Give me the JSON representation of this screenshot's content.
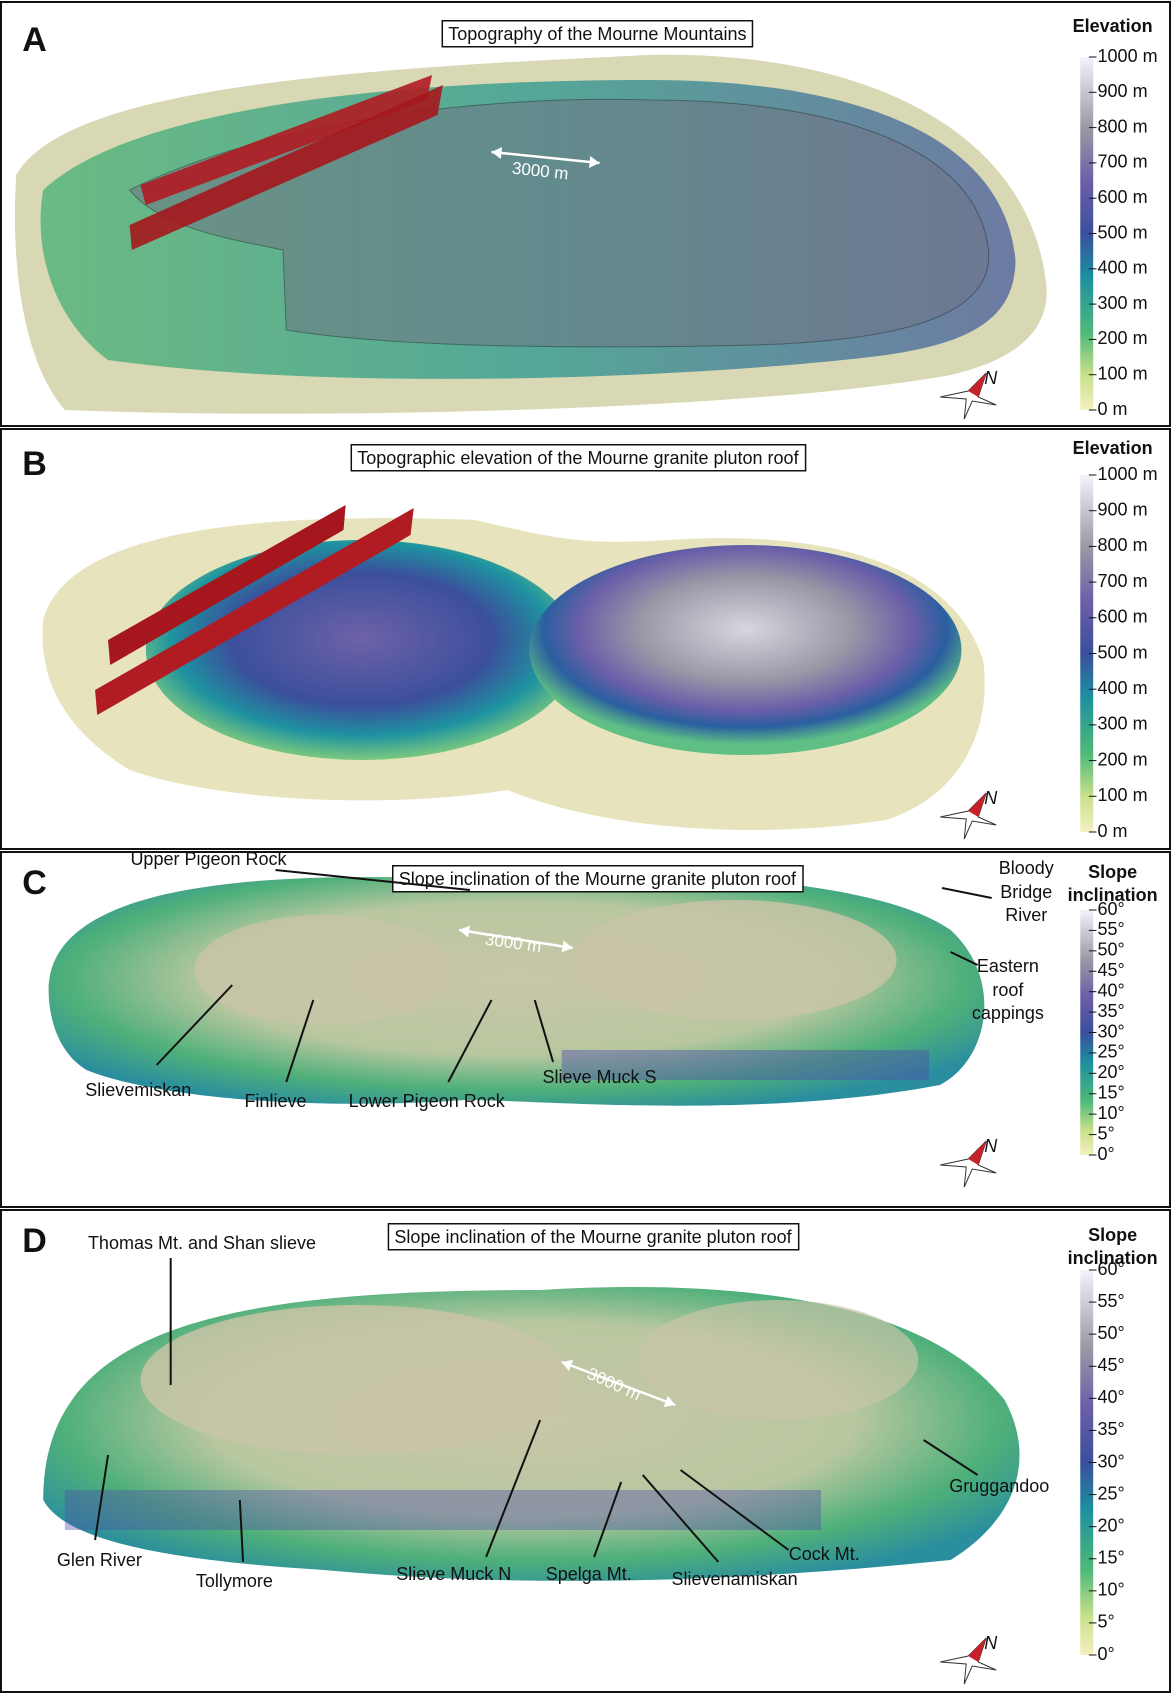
{
  "panels": [
    {
      "letter": "A",
      "title": "Topography of the Mourne Mountains",
      "legend": {
        "title": [
          "Elevation"
        ],
        "ticks": [
          "1000 m",
          "900 m",
          "800 m",
          "700 m",
          "600 m",
          "500 m",
          "400 m",
          "300 m",
          "200 m",
          "100 m",
          "0 m"
        ]
      },
      "scale_bar": "3000 m",
      "north": "N",
      "annotations": []
    },
    {
      "letter": "B",
      "title": "Topographic elevation of the Mourne granite pluton roof",
      "legend": {
        "title": [
          "Elevation"
        ],
        "ticks": [
          "1000 m",
          "900 m",
          "800 m",
          "700 m",
          "600 m",
          "500 m",
          "400 m",
          "300 m",
          "200 m",
          "100 m",
          "0 m"
        ]
      },
      "north": "N",
      "annotations": []
    },
    {
      "letter": "C",
      "title": "Slope inclination of the Mourne granite pluton roof",
      "legend": {
        "title": [
          "Slope",
          "inclination"
        ],
        "ticks": [
          "60°",
          "55°",
          "50°",
          "45°",
          "40°",
          "35°",
          "30°",
          "25°",
          "20°",
          "15°",
          "10°",
          "5°",
          "0°"
        ]
      },
      "scale_bar": "3000 m",
      "north": "N",
      "annotations": [
        [
          "Upper Pigeon Rock"
        ],
        [
          "Bloody",
          "Bridge",
          "River"
        ],
        [
          "Eastern",
          "roof",
          "cappings"
        ],
        [
          "Slievemiskan"
        ],
        [
          "Finlieve"
        ],
        [
          "Lower Pigeon Rock"
        ],
        [
          "Slieve Muck S"
        ]
      ]
    },
    {
      "letter": "D",
      "title": "Slope inclination of the Mourne granite pluton roof",
      "legend": {
        "title": [
          "Slope",
          "inclination"
        ],
        "ticks": [
          "60°",
          "55°",
          "50°",
          "45°",
          "40°",
          "35°",
          "30°",
          "25°",
          "20°",
          "15°",
          "10°",
          "5°",
          "0°"
        ]
      },
      "scale_bar": "3000 m",
      "north": "N",
      "annotations": [
        [
          "Thomas Mt. and Shan slieve"
        ],
        [
          "Glen River"
        ],
        [
          "Tollymore"
        ],
        [
          "Slieve Muck N"
        ],
        [
          "Spelga Mt."
        ],
        [
          "Slievenamiskan"
        ],
        [
          "Cock Mt."
        ],
        [
          "Gruggandoo"
        ]
      ]
    }
  ]
}
